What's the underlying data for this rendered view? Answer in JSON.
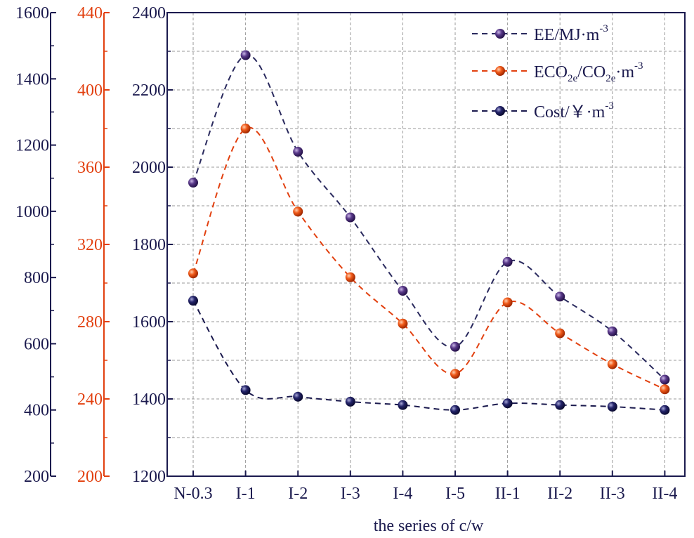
{
  "chart_data": {
    "type": "line",
    "xlabel": "the series of c/w",
    "categories": [
      "N-0.3",
      "I-1",
      "I-2",
      "I-3",
      "I-4",
      "I-5",
      "II-1",
      "II-2",
      "II-3",
      "II-4"
    ],
    "axes": [
      {
        "id": "cost",
        "side": "outer-left",
        "color": "#1b1a4e",
        "range": [
          200,
          1600
        ],
        "ticks": [
          200,
          400,
          600,
          800,
          1000,
          1200,
          1400,
          1600
        ]
      },
      {
        "id": "eco2",
        "side": "middle-left",
        "color": "#e2400f",
        "range": [
          200,
          440
        ],
        "ticks": [
          200,
          240,
          280,
          320,
          360,
          400,
          440
        ]
      },
      {
        "id": "ee",
        "side": "inner-left",
        "color": "#1b1a4e",
        "range": [
          1200,
          2400
        ],
        "ticks": [
          1200,
          1400,
          1600,
          1800,
          2000,
          2200,
          2400
        ]
      }
    ],
    "series": [
      {
        "name": "EE",
        "axis": "ee",
        "line_color": "#2a2a5e",
        "marker_color": "#4a2a7a",
        "values": [
          1960,
          2290,
          2040,
          1870,
          1680,
          1535,
          1755,
          1665,
          1575,
          1450
        ]
      },
      {
        "name": "ECO2e",
        "axis": "eco2",
        "line_color": "#e2400f",
        "marker_color": "#e2400f",
        "values": [
          305,
          380,
          337,
          303,
          279,
          253,
          290,
          274,
          258,
          245
        ]
      },
      {
        "name": "Cost",
        "axis": "cost",
        "line_color": "#1b1a4e",
        "marker_color": "#1b1a4e",
        "values": [
          730,
          460,
          440,
          425,
          415,
          400,
          420,
          415,
          410,
          400
        ]
      }
    ],
    "legend": {
      "placement": "top-right",
      "entries": [
        {
          "series": "EE",
          "text": "EE/MJ·m",
          "sup": "-3"
        },
        {
          "series": "ECO2e",
          "parts": [
            "ECO",
            "2e",
            "/CO",
            "2e",
            "·m"
          ],
          "sup": "-3"
        },
        {
          "series": "Cost",
          "text": "Cost/￥·m",
          "sup": "-3"
        }
      ]
    },
    "grid": true
  }
}
